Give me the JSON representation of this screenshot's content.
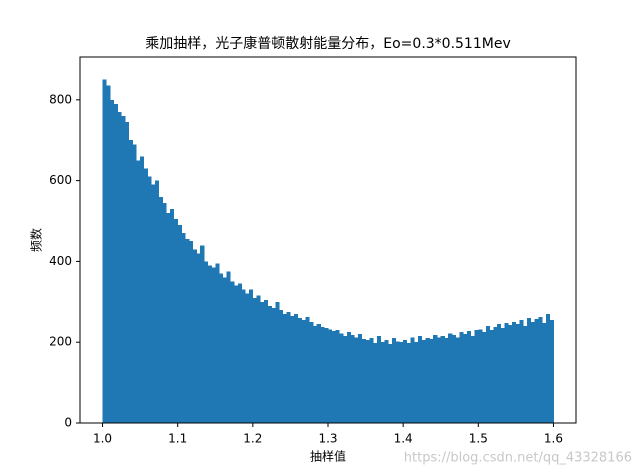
{
  "chart_data": {
    "type": "histogram",
    "title": "乘加抽样，光子康普顿散射能量分布，Eo=0.3*0.511Mev",
    "x_label": "抽样值",
    "y_label": "频数",
    "watermark": "https://blog.csdn.net/qq_43328166",
    "color": "#1f77b4",
    "xlim": [
      0.97,
      1.63
    ],
    "ylim": [
      0,
      906
    ],
    "xticks": [
      {
        "value": 1,
        "label": "1.0"
      },
      1.1,
      1.2,
      1.3,
      1.4,
      1.5,
      1.6
    ],
    "yticks": [
      0,
      200,
      400,
      600,
      800
    ],
    "bins": [
      1,
      1.005,
      1.01,
      1.015,
      1.02,
      1.025,
      1.03,
      1.035,
      1.04,
      1.045,
      1.05,
      1.055,
      1.06,
      1.065,
      1.07,
      1.075,
      1.08,
      1.085,
      1.09,
      1.095,
      1.1,
      1.105,
      1.11,
      1.115,
      1.12,
      1.125,
      1.13,
      1.135,
      1.14,
      1.145,
      1.15,
      1.155,
      1.16,
      1.165,
      1.17,
      1.175,
      1.18,
      1.185,
      1.19,
      1.195,
      1.2,
      1.205,
      1.21,
      1.215,
      1.22,
      1.225,
      1.23,
      1.235,
      1.24,
      1.245,
      1.25,
      1.255,
      1.26,
      1.265,
      1.27,
      1.275,
      1.28,
      1.285,
      1.29,
      1.295,
      1.3,
      1.305,
      1.31,
      1.315,
      1.32,
      1.325,
      1.33,
      1.335,
      1.34,
      1.345,
      1.35,
      1.355,
      1.36,
      1.365,
      1.37,
      1.375,
      1.38,
      1.385,
      1.39,
      1.395,
      1.4,
      1.405,
      1.41,
      1.415,
      1.42,
      1.425,
      1.43,
      1.435,
      1.44,
      1.445,
      1.45,
      1.455,
      1.46,
      1.465,
      1.47,
      1.475,
      1.48,
      1.485,
      1.49,
      1.495,
      1.5,
      1.505,
      1.51,
      1.515,
      1.52,
      1.525,
      1.53,
      1.535,
      1.54,
      1.545,
      1.55,
      1.555,
      1.56,
      1.565,
      1.57,
      1.575,
      1.58,
      1.585,
      1.59,
      1.595,
      1.6
    ],
    "values": [
      850,
      835,
      800,
      790,
      770,
      760,
      745,
      700,
      690,
      650,
      660,
      630,
      610,
      590,
      600,
      560,
      545,
      520,
      530,
      505,
      490,
      470,
      455,
      450,
      430,
      420,
      440,
      400,
      390,
      385,
      395,
      370,
      360,
      375,
      350,
      340,
      345,
      330,
      320,
      330,
      310,
      315,
      300,
      305,
      290,
      285,
      300,
      280,
      270,
      275,
      265,
      270,
      260,
      255,
      262,
      250,
      240,
      245,
      238,
      235,
      232,
      228,
      230,
      222,
      215,
      225,
      218,
      212,
      220,
      208,
      205,
      210,
      198,
      215,
      200,
      206,
      195,
      210,
      202,
      200,
      205,
      198,
      212,
      200,
      215,
      205,
      210,
      208,
      218,
      212,
      215,
      210,
      222,
      218,
      212,
      225,
      220,
      228,
      215,
      230,
      232,
      225,
      240,
      230,
      238,
      245,
      235,
      248,
      242,
      250,
      245,
      255,
      240,
      260,
      250,
      258,
      262,
      248,
      270,
      255
    ]
  }
}
